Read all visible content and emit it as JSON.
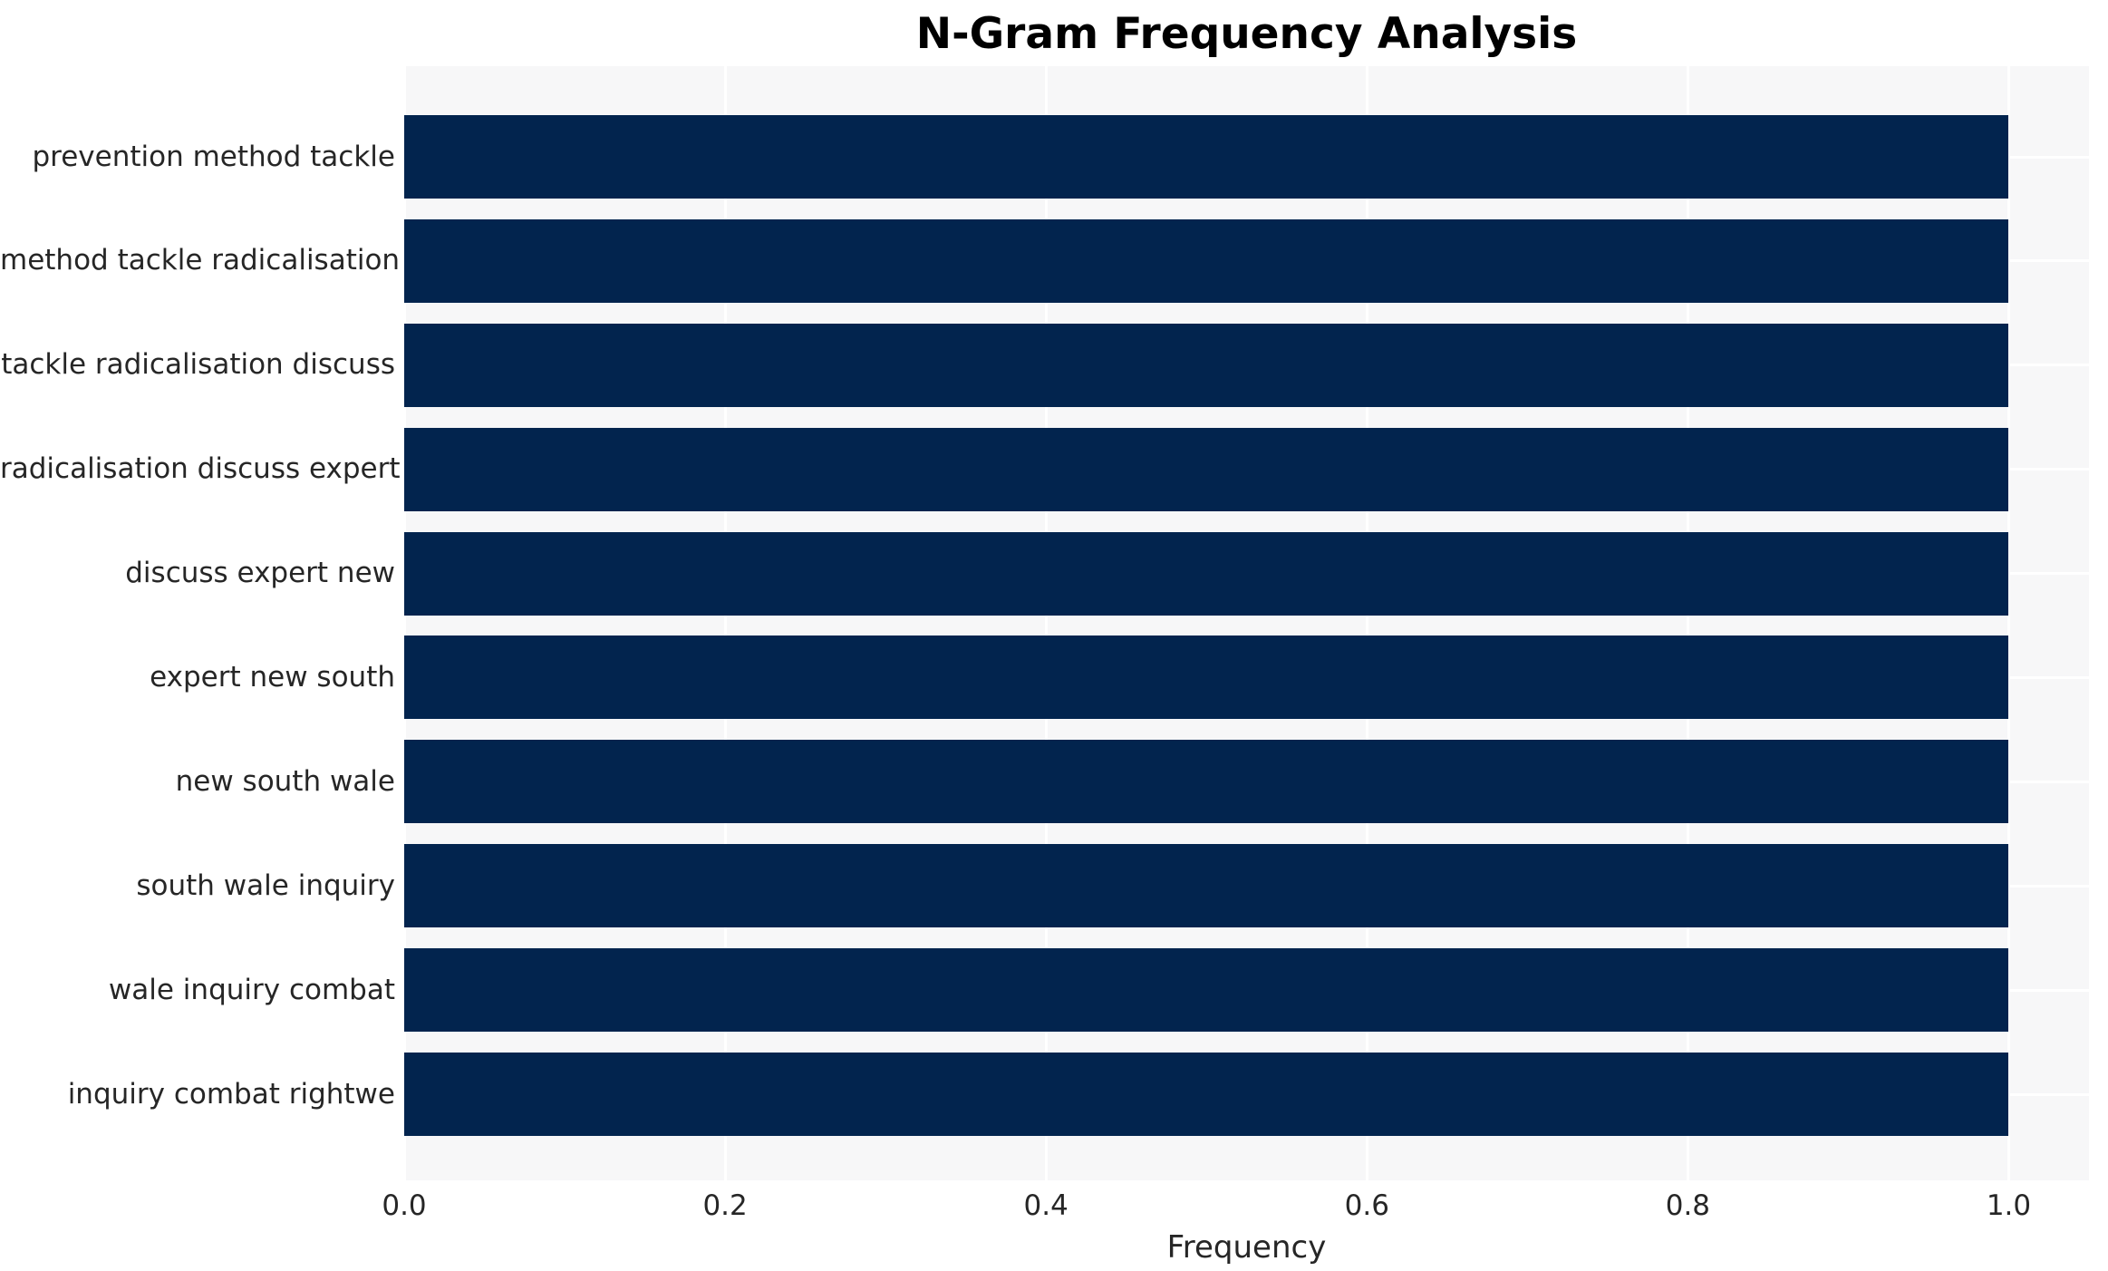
{
  "title": "N-Gram Frequency Analysis",
  "colors": {
    "bar": "#02244e",
    "plot_background": "#f7f7f8",
    "gridline": "#ffffff",
    "figure_background": "#ffffff",
    "text": "#262626",
    "title_text": "#000000"
  },
  "chart_data": {
    "type": "bar",
    "orientation": "horizontal",
    "title": "N-Gram Frequency Analysis",
    "xlabel": "Frequency",
    "ylabel": "",
    "categories": [
      "prevention method tackle",
      "method tackle radicalisation",
      "tackle radicalisation discuss",
      "radicalisation discuss expert",
      "discuss expert new",
      "expert new south",
      "new south wale",
      "south wale inquiry",
      "wale inquiry combat",
      "inquiry combat rightwe"
    ],
    "values": [
      1.0,
      1.0,
      1.0,
      1.0,
      1.0,
      1.0,
      1.0,
      1.0,
      1.0,
      1.0
    ],
    "xlim": [
      0.0,
      1.05
    ],
    "xticks": [
      0.0,
      0.2,
      0.4,
      0.6,
      0.8,
      1.0
    ],
    "xtick_labels": [
      "0.0",
      "0.2",
      "0.4",
      "0.6",
      "0.8",
      "1.0"
    ],
    "grid": true,
    "grid_axis": "both",
    "legend": null
  }
}
